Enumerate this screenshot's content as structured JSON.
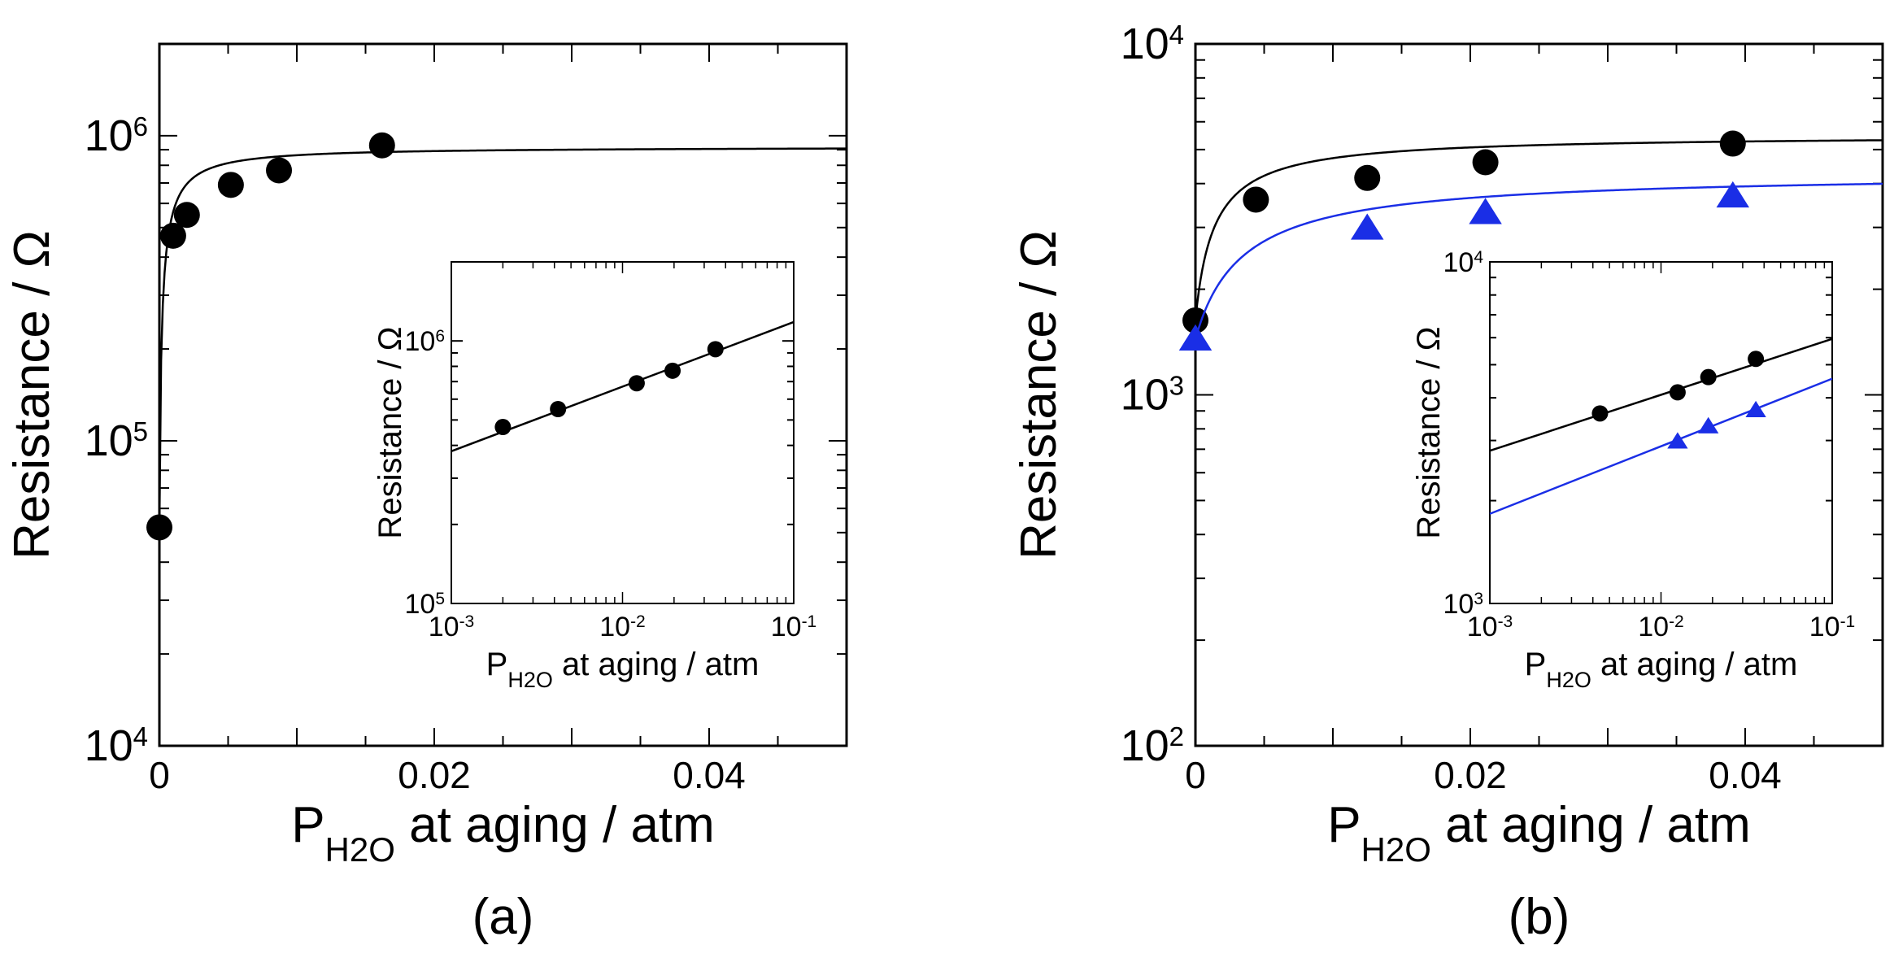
{
  "chart_data": [
    {
      "type": "scatter",
      "panel_label": "(a)",
      "xlabel": {
        "main": "P",
        "sub": "H2O",
        "rest": " at aging / atm"
      },
      "ylabel": "Resistance / Ω",
      "xlim": [
        0,
        0.05
      ],
      "ylim": [
        10000,
        2000000
      ],
      "yscale": "log",
      "xticks": [
        0,
        0.02,
        0.04
      ],
      "xtick_labels": [
        "0",
        "0.02",
        "0.04"
      ],
      "ytick_labels": [
        {
          "base": "10",
          "exp": "4",
          "value": 10000
        },
        {
          "base": "10",
          "exp": "5",
          "value": 100000
        },
        {
          "base": "10",
          "exp": "6",
          "value": 1000000
        }
      ],
      "series": [
        {
          "color": "#000000",
          "marker": "circle",
          "points": [
            [
              0,
              52000
            ],
            [
              0.001,
              470000
            ],
            [
              0.002,
              550000
            ],
            [
              0.0052,
              690000
            ],
            [
              0.0087,
              770000
            ],
            [
              0.0162,
              930000
            ]
          ],
          "fit": {
            "model": "R0+(Rinf-R0)*x/(x+K)",
            "R0": 52000,
            "Rinf": 920000,
            "K": 0.0007
          }
        }
      ],
      "inset": {
        "xlabel": {
          "main": "P",
          "sub": "H2O",
          "rest": " at aging / atm"
        },
        "ylabel": "Resistance / Ω",
        "xscale": "log",
        "yscale": "log",
        "xlim": [
          0.001,
          0.1
        ],
        "ylim": [
          100000,
          2000000
        ],
        "xtick_labels": [
          {
            "base": "10",
            "exp": "-3",
            "value": 0.001
          },
          {
            "base": "10",
            "exp": "-2",
            "value": 0.01
          },
          {
            "base": "10",
            "exp": "-1",
            "value": 0.1
          }
        ],
        "ytick_labels": [
          {
            "base": "10",
            "exp": "5",
            "value": 100000
          },
          {
            "base": "10",
            "exp": "6",
            "value": 1000000
          }
        ],
        "series": [
          {
            "color": "#000000",
            "marker": "circle",
            "points": [
              [
                0.002,
                470000
              ],
              [
                0.0042,
                550000
              ],
              [
                0.0121,
                690000
              ],
              [
                0.0196,
                770000
              ],
              [
                0.0349,
                930000
              ]
            ],
            "fit_line": [
              [
                0.001,
                380000
              ],
              [
                0.1,
                1180000
              ]
            ]
          }
        ]
      }
    },
    {
      "type": "scatter",
      "panel_label": "(b)",
      "xlabel": {
        "main": "P",
        "sub": "H2O",
        "rest": " at aging / atm"
      },
      "ylabel": "Resistance / Ω",
      "xlim": [
        0,
        0.05
      ],
      "ylim": [
        100,
        10000
      ],
      "yscale": "log",
      "xticks": [
        0,
        0.02,
        0.04
      ],
      "xtick_labels": [
        "0",
        "0.02",
        "0.04"
      ],
      "ytick_labels": [
        {
          "base": "10",
          "exp": "2",
          "value": 100
        },
        {
          "base": "10",
          "exp": "3",
          "value": 1000
        },
        {
          "base": "10",
          "exp": "4",
          "value": 10000
        }
      ],
      "series": [
        {
          "color": "#000000",
          "marker": "circle",
          "points": [
            [
              0,
              1630
            ],
            [
              0.0044,
              3600
            ],
            [
              0.0125,
              4150
            ],
            [
              0.0211,
              4600
            ],
            [
              0.0391,
              5200
            ]
          ],
          "fit": {
            "model": "R0+(Rinf-R0)*x/(x+K)",
            "R0": 1630,
            "Rinf": 5500,
            "K": 0.0025
          }
        },
        {
          "color": "#1a2ee6",
          "marker": "triangle",
          "points": [
            [
              0,
              1440
            ],
            [
              0.0125,
              2980
            ],
            [
              0.0211,
              3300
            ],
            [
              0.0391,
              3680
            ]
          ],
          "fit": {
            "model": "R0+(Rinf-R0)*x/(x+K)",
            "R0": 1440,
            "Rinf": 4300,
            "K": 0.006
          }
        }
      ],
      "inset": {
        "xlabel": {
          "main": "P",
          "sub": "H2O",
          "rest": " at aging / atm"
        },
        "ylabel": "Resistance / Ω",
        "xscale": "log",
        "yscale": "log",
        "xlim": [
          0.001,
          0.1
        ],
        "ylim": [
          1000,
          10000
        ],
        "xtick_labels": [
          {
            "base": "10",
            "exp": "-3",
            "value": 0.001
          },
          {
            "base": "10",
            "exp": "-2",
            "value": 0.01
          },
          {
            "base": "10",
            "exp": "-1",
            "value": 0.1
          }
        ],
        "ytick_labels": [
          {
            "base": "10",
            "exp": "3",
            "value": 1000
          },
          {
            "base": "10",
            "exp": "4",
            "value": 10000
          }
        ],
        "series": [
          {
            "color": "#000000",
            "marker": "circle",
            "points": [
              [
                0.0044,
                3600
              ],
              [
                0.0125,
                4150
              ],
              [
                0.0189,
                4600
              ],
              [
                0.0358,
                5200
              ]
            ],
            "fit_line": [
              [
                0.001,
                2800
              ],
              [
                0.1,
                5950
              ]
            ]
          },
          {
            "color": "#1a2ee6",
            "marker": "triangle",
            "points": [
              [
                0.0125,
                2980
              ],
              [
                0.0189,
                3300
              ],
              [
                0.0358,
                3680
              ]
            ],
            "fit_line": [
              [
                0.001,
                1830
              ],
              [
                0.1,
                4550
              ]
            ]
          }
        ]
      }
    }
  ]
}
